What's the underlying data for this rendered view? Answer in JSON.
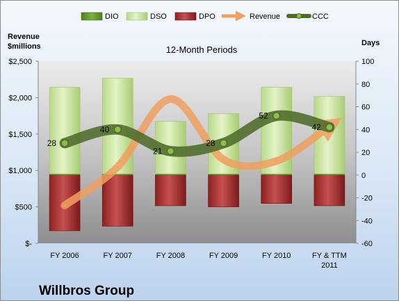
{
  "chart_data": {
    "type": "bar",
    "title": "12-Month Periods",
    "company": "Willbros Group",
    "left_axis_label": [
      "Revenue",
      "$millions"
    ],
    "right_axis_label": "Days",
    "categories": [
      [
        "FY 2006"
      ],
      [
        "FY 2007"
      ],
      [
        "FY 2008"
      ],
      [
        "FY 2009"
      ],
      [
        "FY 2010"
      ],
      [
        "FY & TTM",
        "2011"
      ]
    ],
    "left_axis": {
      "min": 0,
      "max": 2500,
      "step": 500,
      "tick_labels": [
        "$-",
        "$500",
        "$1,000",
        "$1,500",
        "$2,000",
        "$2,500"
      ]
    },
    "right_axis": {
      "min": -60,
      "max": 100,
      "step": 20,
      "tick_labels": [
        "-60",
        "-40",
        "-20",
        "0",
        "20",
        "40",
        "60",
        "80",
        "100"
      ]
    },
    "series": [
      {
        "name": "DIO",
        "axis": "right",
        "kind": "stacked-bar-positive",
        "values": [
          1,
          1,
          1,
          1,
          1,
          1
        ],
        "color": "#5e8f2c"
      },
      {
        "name": "DSO",
        "axis": "right",
        "kind": "stacked-bar-positive",
        "values": [
          76,
          84,
          46,
          53,
          76,
          68
        ],
        "color": "#d8ecb0"
      },
      {
        "name": "DPO",
        "axis": "right",
        "kind": "stacked-bar-negative",
        "values": [
          -49,
          -45,
          -27,
          -28,
          -25,
          -27
        ],
        "color": "#a52a2a"
      },
      {
        "name": "Revenue",
        "axis": "left",
        "kind": "smooth-arrow",
        "values": [
          520,
          1050,
          1980,
          1150,
          1130,
          1610
        ],
        "color": "#f0a060"
      },
      {
        "name": "CCC",
        "axis": "right",
        "kind": "smooth-line",
        "values": [
          28,
          40,
          21,
          28,
          52,
          42
        ],
        "data_labels": [
          "28",
          "40",
          "21",
          "28",
          "52",
          "42"
        ],
        "color": "#4e6b2a"
      }
    ],
    "legend_position": "top",
    "grid": false
  }
}
